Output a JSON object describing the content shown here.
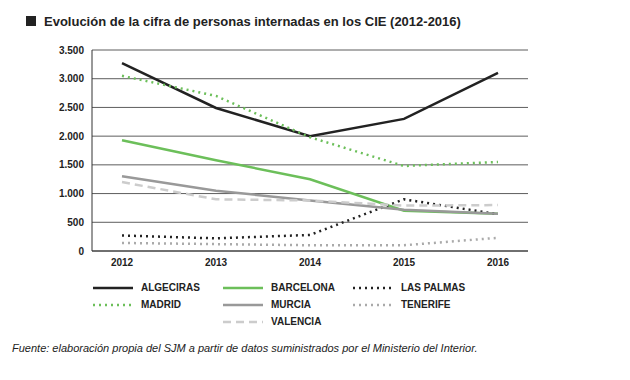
{
  "chart_data": {
    "type": "line",
    "title": "Evolución de la cifra de personas internadas en los CIE (2012-2016)",
    "source": "Fuente: elaboración propia del SJM a partir de datos suministrados por el Ministerio del Interior.",
    "categories": [
      "2012",
      "2013",
      "2014",
      "2015",
      "2016"
    ],
    "series": [
      {
        "name": "ALGECIRAS",
        "color": "#222222",
        "line_style": "solid",
        "values": [
          3270,
          2490,
          2000,
          2300,
          3100
        ]
      },
      {
        "name": "BARCELONA",
        "color": "#6cbf5a",
        "line_style": "solid",
        "values": [
          1930,
          1580,
          1250,
          700,
          650
        ]
      },
      {
        "name": "LAS PALMAS",
        "color": "#222222",
        "line_style": "dotted",
        "values": [
          270,
          220,
          280,
          900,
          640
        ]
      },
      {
        "name": "MADRID",
        "color": "#6cbf5a",
        "line_style": "dotted",
        "values": [
          3050,
          2700,
          1980,
          1480,
          1550
        ]
      },
      {
        "name": "MURCIA",
        "color": "#999999",
        "line_style": "solid",
        "values": [
          1300,
          1050,
          880,
          720,
          650
        ]
      },
      {
        "name": "TENERIFE",
        "color": "#aaaaaa",
        "line_style": "dotted",
        "values": [
          140,
          120,
          100,
          100,
          230
        ]
      },
      {
        "name": "VALENCIA",
        "color": "#cccccc",
        "line_style": "dashed",
        "values": [
          1200,
          900,
          880,
          790,
          800
        ]
      }
    ],
    "ylim": [
      0,
      3500
    ],
    "yticks": [
      0,
      {
        "value": 500,
        "label": "500"
      },
      {
        "value": 1000,
        "label": "1.000"
      },
      {
        "value": 1500,
        "label": "1.500"
      },
      {
        "value": 2000,
        "label": "2.000"
      },
      {
        "value": 2500,
        "label": "2.500"
      },
      {
        "value": 3000,
        "label": "3.000"
      },
      {
        "value": 3500,
        "label": "3.500"
      }
    ],
    "grid": true,
    "legend": "bottom"
  }
}
